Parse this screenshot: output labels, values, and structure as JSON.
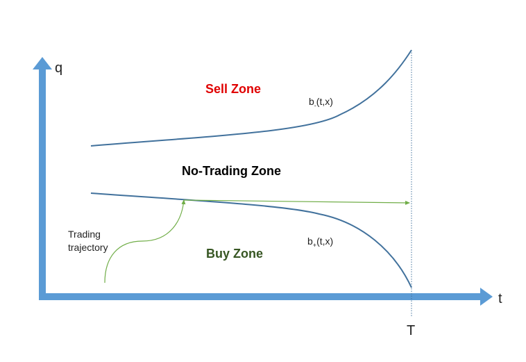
{
  "axes": {
    "y_label": "q",
    "x_label": "t",
    "terminal_label": "T"
  },
  "zones": {
    "sell": "Sell Zone",
    "no_trading": "No-Trading Zone",
    "buy": "Buy Zone"
  },
  "boundaries": {
    "upper": {
      "prefix": "b",
      "sub": "-",
      "suffix": "(t,x)"
    },
    "lower": {
      "prefix": "b",
      "sub": "+",
      "suffix": "(t,x)"
    }
  },
  "trajectory": {
    "line1": "Trading",
    "line2": "trajectory"
  },
  "colors": {
    "axis": "#5b9bd5",
    "boundary": "#41719c",
    "trajectory": "#70ad47",
    "sell": "#e00000",
    "buy": "#375623",
    "no_trading": "#000000",
    "terminal_line": "#41719c"
  }
}
